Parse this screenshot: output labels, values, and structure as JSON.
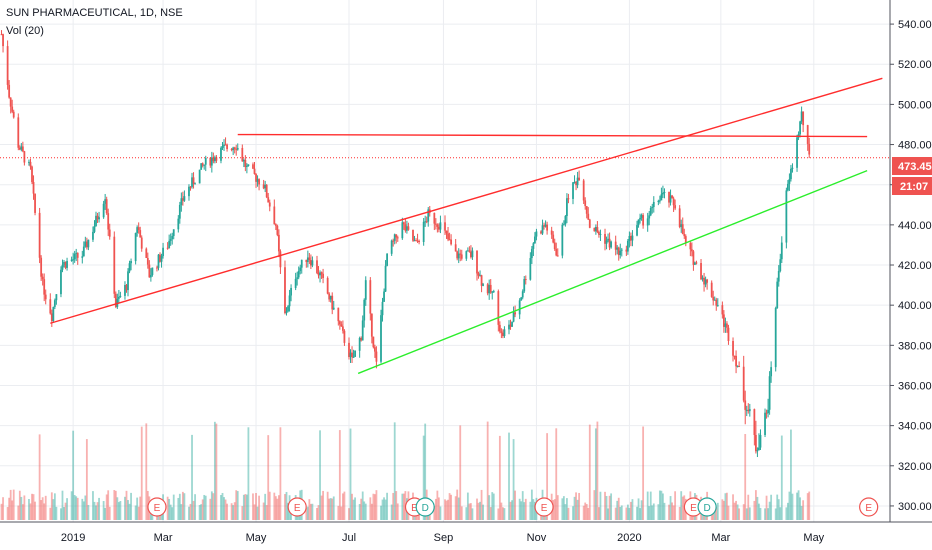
{
  "legend": {
    "symbol": "SUN PHARMACEUTICAL",
    "interval": "1D",
    "exchange": "NSE",
    "indicator": "Vol (20)"
  },
  "colors": {
    "up": "#26a69a",
    "down": "#ef5350",
    "grid": "#ebedf1",
    "trend_red": "#ff2d2d",
    "trend_green": "#2bee2b",
    "text": "#131722"
  },
  "price_badge": {
    "value": "473.45",
    "countdown": "21:07"
  },
  "chart_data": {
    "type": "candlestick",
    "title": "SUN PHARMACEUTICAL, 1D, NSE",
    "y_ticks": [
      "300.00",
      "320.00",
      "340.00",
      "360.00",
      "380.00",
      "400.00",
      "420.00",
      "440.00",
      "460.00",
      "480.00",
      "500.00",
      "520.00",
      "540.00"
    ],
    "ylim": [
      292,
      552
    ],
    "x_ticks": [
      "2019",
      "Mar",
      "May",
      "Jul",
      "Sep",
      "Nov",
      "2020",
      "Mar",
      "May"
    ],
    "x_tick_dates": [
      "2019-01-01",
      "2019-03-01",
      "2019-05-01",
      "2019-07-01",
      "2019-09-01",
      "2019-11-01",
      "2020-01-01",
      "2020-03-01",
      "2020-05-01"
    ],
    "xlim": [
      "2018-11-14",
      "2020-06-20"
    ],
    "last_price": 473.45,
    "price_path": [
      [
        "2018-11-15",
        535
      ],
      [
        "2018-11-20",
        505
      ],
      [
        "2018-11-26",
        480
      ],
      [
        "2018-12-04",
        467
      ],
      [
        "2018-12-12",
        410
      ],
      [
        "2018-12-18",
        395
      ],
      [
        "2018-12-24",
        420
      ],
      [
        "2019-01-07",
        425
      ],
      [
        "2019-01-15",
        440
      ],
      [
        "2019-01-22",
        455
      ],
      [
        "2019-01-29",
        400
      ],
      [
        "2019-02-05",
        410
      ],
      [
        "2019-02-12",
        440
      ],
      [
        "2019-02-20",
        415
      ],
      [
        "2019-03-04",
        430
      ],
      [
        "2019-03-15",
        455
      ],
      [
        "2019-03-28",
        470
      ],
      [
        "2019-04-10",
        478
      ],
      [
        "2019-04-18",
        480
      ],
      [
        "2019-04-25",
        468
      ],
      [
        "2019-05-06",
        460
      ],
      [
        "2019-05-14",
        440
      ],
      [
        "2019-05-20",
        395
      ],
      [
        "2019-05-27",
        415
      ],
      [
        "2019-06-04",
        425
      ],
      [
        "2019-06-12",
        415
      ],
      [
        "2019-06-20",
        400
      ],
      [
        "2019-06-27",
        385
      ],
      [
        "2019-07-03",
        372
      ],
      [
        "2019-07-09",
        385
      ],
      [
        "2019-07-12",
        410
      ],
      [
        "2019-07-19",
        370
      ],
      [
        "2019-07-26",
        425
      ],
      [
        "2019-08-05",
        440
      ],
      [
        "2019-08-14",
        430
      ],
      [
        "2019-08-22",
        445
      ],
      [
        "2019-08-30",
        440
      ],
      [
        "2019-09-09",
        425
      ],
      [
        "2019-09-20",
        425
      ],
      [
        "2019-09-27",
        410
      ],
      [
        "2019-10-04",
        405
      ],
      [
        "2019-10-09",
        385
      ],
      [
        "2019-10-15",
        390
      ],
      [
        "2019-10-22",
        405
      ],
      [
        "2019-10-31",
        435
      ],
      [
        "2019-11-07",
        440
      ],
      [
        "2019-11-15",
        425
      ],
      [
        "2019-11-22",
        455
      ],
      [
        "2019-11-29",
        465
      ],
      [
        "2019-12-06",
        440
      ],
      [
        "2019-12-13",
        435
      ],
      [
        "2019-12-20",
        430
      ],
      [
        "2019-12-27",
        425
      ],
      [
        "2020-01-06",
        440
      ],
      [
        "2020-01-14",
        445
      ],
      [
        "2020-01-22",
        455
      ],
      [
        "2020-01-31",
        450
      ],
      [
        "2020-02-07",
        430
      ],
      [
        "2020-02-14",
        420
      ],
      [
        "2020-02-21",
        410
      ],
      [
        "2020-02-28",
        400
      ],
      [
        "2020-03-06",
        385
      ],
      [
        "2020-03-12",
        370
      ],
      [
        "2020-03-18",
        350
      ],
      [
        "2020-03-24",
        330
      ],
      [
        "2020-03-31",
        345
      ],
      [
        "2020-04-03",
        370
      ],
      [
        "2020-04-07",
        410
      ],
      [
        "2020-04-13",
        455
      ],
      [
        "2020-04-17",
        470
      ],
      [
        "2020-04-23",
        495
      ],
      [
        "2020-04-28",
        473
      ]
    ],
    "volume_ylim": [
      0,
      6
    ],
    "trendlines": [
      {
        "color": "red",
        "from": [
          "2018-12-17",
          391
        ],
        "to": [
          "2020-06-15",
          513
        ]
      },
      {
        "color": "red",
        "from": [
          "2019-04-19",
          485
        ],
        "to": [
          "2020-06-05",
          484
        ]
      },
      {
        "color": "red-dotted",
        "from": [
          "2018-11-14",
          473.45
        ],
        "to": [
          "2020-06-20",
          473.45
        ]
      },
      {
        "color": "green",
        "from": [
          "2019-07-07",
          366
        ],
        "to": [
          "2020-06-05",
          467
        ]
      }
    ],
    "events": [
      {
        "date": "2019-02-25",
        "label": "E"
      },
      {
        "date": "2019-05-28",
        "label": "E"
      },
      {
        "date": "2019-08-13",
        "label": "E"
      },
      {
        "date": "2019-08-20",
        "label": "D"
      },
      {
        "date": "2019-11-06",
        "label": "E"
      },
      {
        "date": "2020-02-12",
        "label": "E"
      },
      {
        "date": "2020-02-21",
        "label": "D"
      },
      {
        "date": "2020-06-06",
        "label": "E"
      }
    ]
  }
}
